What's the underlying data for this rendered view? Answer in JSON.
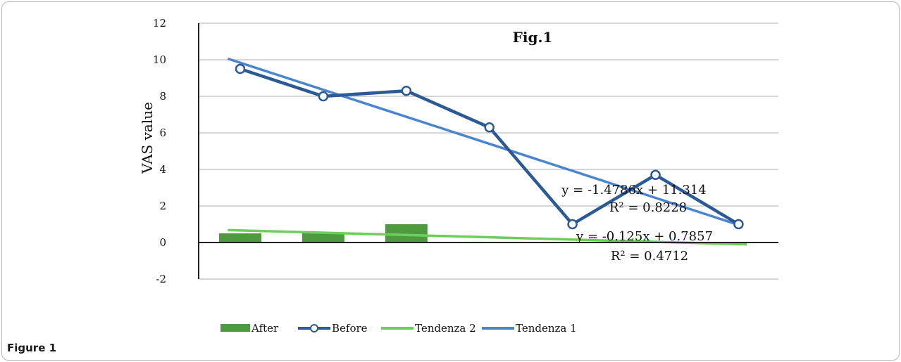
{
  "caption": "Figure 1",
  "chart_data": {
    "type": "bar+line",
    "title": "Fig.1",
    "ylabel": "VAS value",
    "xlabel": "",
    "ylim": [
      -2,
      12
    ],
    "yticks": [
      "-2",
      "0",
      "2",
      "4",
      "6",
      "8",
      "10",
      "12"
    ],
    "grid": true,
    "legend_position": "bottom",
    "x": [
      1,
      2,
      3,
      4,
      5,
      6,
      7
    ],
    "series": [
      {
        "name": "After",
        "kind": "bar",
        "color": "#4e9a3f",
        "values": [
          0.5,
          0.5,
          1,
          0,
          0,
          0,
          0
        ]
      },
      {
        "name": "Before",
        "kind": "line",
        "color": "#2b5a94",
        "marker": "circle",
        "values": [
          9.5,
          8,
          8.3,
          6.3,
          1,
          3.7,
          1
        ]
      },
      {
        "name": "Tendenza 2",
        "kind": "trend",
        "color": "#6ccf5a",
        "slope": -0.125,
        "intercept": 0.7857
      },
      {
        "name": "Tendenza 1",
        "kind": "trend",
        "color": "#4a86d0",
        "slope": -1.4786,
        "intercept": 11.314
      }
    ],
    "annotations": [
      {
        "text": "y = -1.4786x + 11.314",
        "near": "trend-1"
      },
      {
        "text": "R² = 0.8228",
        "near": "trend-1"
      },
      {
        "text": "y = -0.125x + 0.7857",
        "near": "trend-2"
      },
      {
        "text": "R² = 0.4712",
        "near": "trend-2"
      }
    ]
  }
}
